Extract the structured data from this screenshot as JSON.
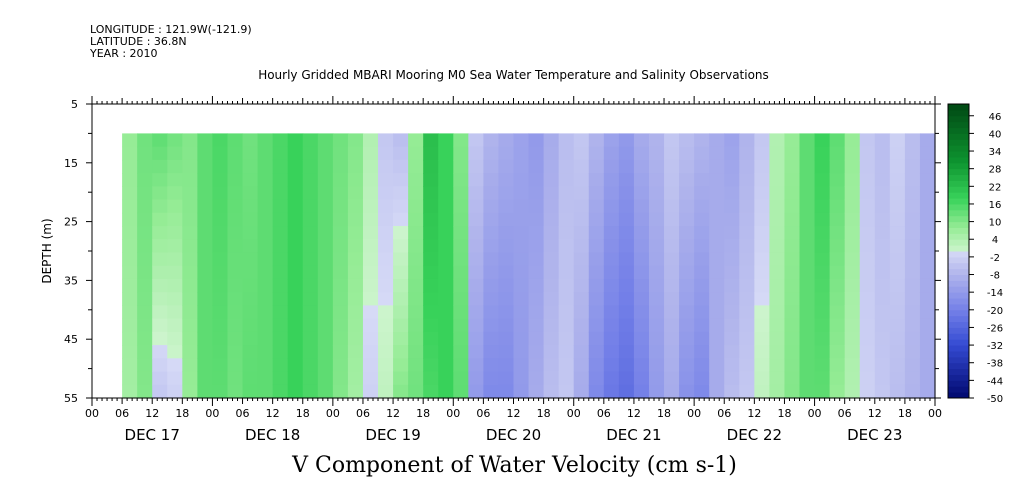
{
  "header": {
    "longitude": "LONGITUDE : 121.9W(-121.9)",
    "latitude": "LATITUDE : 36.8N",
    "year": "YEAR : 2010"
  },
  "chart_data": {
    "type": "heatmap",
    "title": "Hourly Gridded MBARI Mooring M0 Sea Water Temperature and Salinity Observations",
    "variable_title": "V Component of Water Velocity (cm s-1)",
    "ylabel": "DEPTH (m)",
    "y_inverted": true,
    "ylim": [
      5,
      55
    ],
    "y_ticks": [
      5,
      15,
      25,
      35,
      45,
      55
    ],
    "x_hour_ticks": [
      "00",
      "06",
      "12",
      "18",
      "00",
      "06",
      "12",
      "18",
      "00",
      "06",
      "12",
      "18",
      "00",
      "06",
      "12",
      "18",
      "00",
      "06",
      "12",
      "18",
      "00",
      "06",
      "12",
      "18",
      "00",
      "06",
      "12",
      "18",
      "00"
    ],
    "x_day_labels": [
      "DEC 17",
      "DEC 18",
      "DEC 19",
      "DEC 20",
      "DEC 21",
      "DEC 22",
      "DEC 23"
    ],
    "x_range_hours": [
      0,
      168
    ],
    "data_start_hour": 6,
    "data_depth_top": 10,
    "colorbar_levels": [
      "46",
      "40",
      "34",
      "28",
      "22",
      "16",
      "10",
      "4",
      "-2",
      "-8",
      "-14",
      "-20",
      "-26",
      "-32",
      "-38",
      "-44",
      "-50"
    ],
    "colorbar_min": -50,
    "colorbar_max": 50,
    "time_profile_hours": [
      6,
      9,
      12,
      15,
      18,
      21,
      24,
      27,
      30,
      33,
      36,
      39,
      42,
      45,
      48,
      51,
      54,
      57,
      60,
      63,
      66,
      69,
      72,
      75,
      78,
      81,
      84,
      87,
      90,
      93,
      96,
      99,
      102,
      105,
      108,
      111,
      114,
      117,
      120,
      123,
      126,
      129,
      132,
      135,
      138,
      141,
      144,
      147,
      150,
      153,
      156,
      159,
      162,
      165,
      168
    ],
    "shallow_velocity": [
      8,
      12,
      14,
      12,
      10,
      14,
      16,
      14,
      12,
      14,
      16,
      18,
      16,
      14,
      12,
      10,
      4,
      -4,
      -6,
      8,
      22,
      18,
      10,
      -4,
      -8,
      -10,
      -12,
      -14,
      -10,
      -6,
      -4,
      -8,
      -12,
      -14,
      -10,
      -8,
      -4,
      -6,
      -8,
      -10,
      -12,
      -8,
      -4,
      4,
      8,
      14,
      18,
      14,
      8,
      -4,
      -6,
      -2,
      -6,
      -10,
      4
    ],
    "deep_velocity": [
      6,
      10,
      -4,
      -2,
      8,
      14,
      14,
      12,
      14,
      14,
      16,
      18,
      16,
      14,
      10,
      6,
      -2,
      2,
      10,
      12,
      16,
      18,
      14,
      -14,
      -18,
      -18,
      -14,
      -10,
      -6,
      -4,
      -10,
      -18,
      -22,
      -24,
      -20,
      -14,
      -10,
      -16,
      -18,
      -10,
      -6,
      -4,
      2,
      6,
      10,
      14,
      14,
      8,
      4,
      -2,
      -4,
      -6,
      -8,
      -10,
      -6
    ]
  }
}
